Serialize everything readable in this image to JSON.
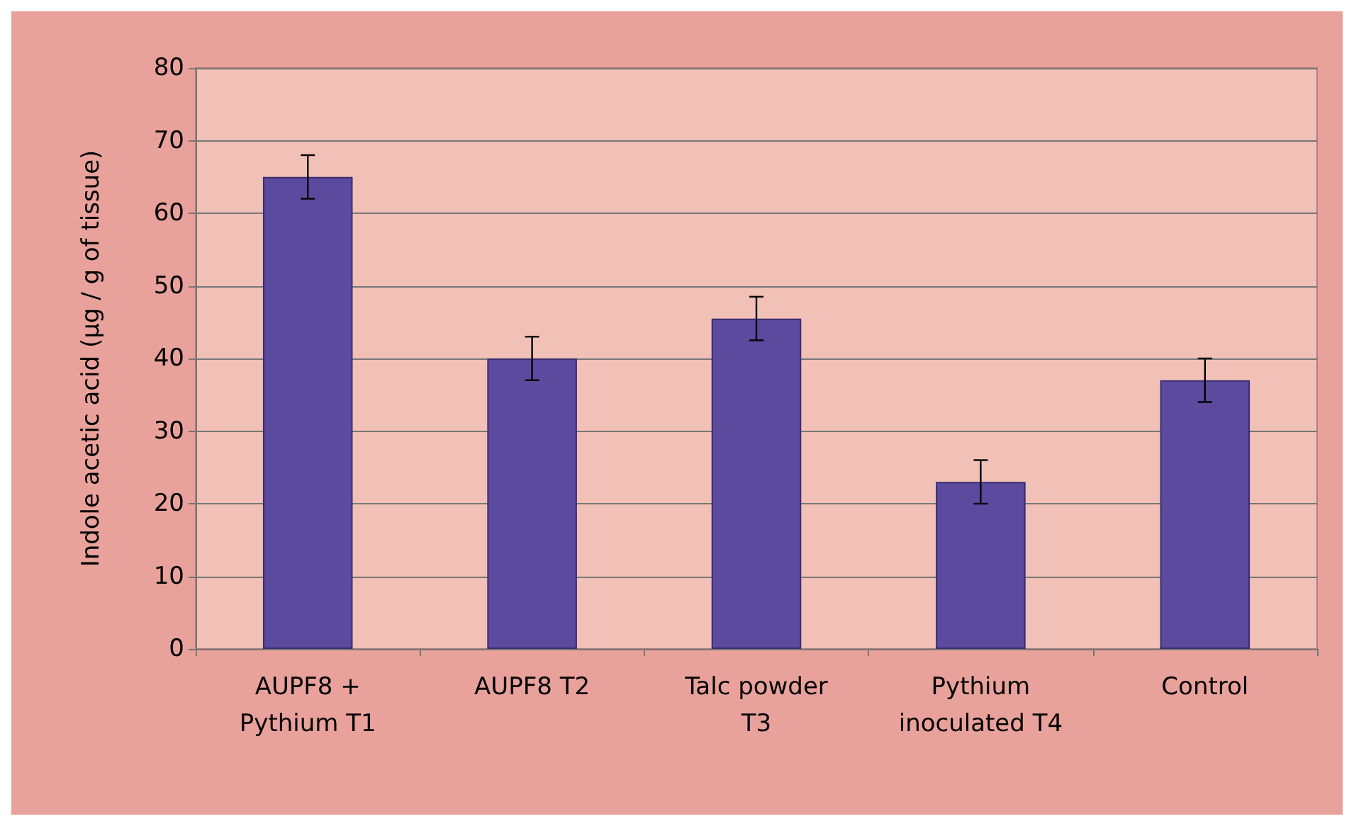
{
  "chart_data": {
    "type": "bar",
    "ylabel": "Indole acetic acid (µg / g of tissue)",
    "categories": [
      "AUPF8 +\nPythium T1",
      "AUPF8 T2",
      "Talc powder\nT3",
      "Pythium\ninoculated T4",
      "Control"
    ],
    "values": [
      65,
      40,
      45.5,
      23,
      37
    ],
    "errors": [
      3,
      3,
      3,
      3,
      3
    ],
    "color": "#5b4a9e",
    "ylim": [
      0,
      80
    ],
    "yticks": [
      0,
      10,
      20,
      30,
      40,
      50,
      60,
      70,
      80
    ],
    "grid": "y"
  }
}
